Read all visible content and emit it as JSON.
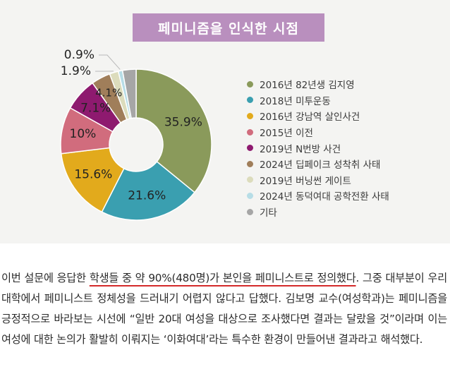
{
  "chart_data": {
    "type": "pie",
    "style": "donut",
    "title": "페미니즘을 인식한 시점",
    "legend_position": "right",
    "slices": [
      {
        "label": "2016년 82년생 김지영",
        "value": 35.9,
        "display": "35.9%",
        "color": "#8a9a5b"
      },
      {
        "label": "2018년 미투운동",
        "value": 21.6,
        "display": "21.6%",
        "color": "#3a9fb0"
      },
      {
        "label": "2016년 강남역 살인사건",
        "value": 15.6,
        "display": "15.6%",
        "color": "#e2aa1c"
      },
      {
        "label": "2015년 이전",
        "value": 10,
        "display": "10%",
        "color": "#d16c7d"
      },
      {
        "label": "2019년 N번방 사건",
        "value": 7.1,
        "display": "7.1%",
        "color": "#8e1a6f"
      },
      {
        "label": "2024년 딥페이크 성착취 사태",
        "value": 4.1,
        "display": "4.1%",
        "color": "#a07e5a"
      },
      {
        "label": "2019년 버닝썬 게이트",
        "value": 1.9,
        "display": "1.9%",
        "color": "#dcdcbc"
      },
      {
        "label": "2024년 동덕여대 공학전환 사태",
        "value": 0.9,
        "display": "0.9%",
        "color": "#b7dde6"
      },
      {
        "label": "기타",
        "value": 2.9,
        "display": "",
        "color": "#a6a6a6"
      }
    ]
  },
  "article": {
    "intro": "이번 설문에 응답한 ",
    "highlight": "학생들 중 약 90%(480명)가 본인을 페미니스트로 정의했다",
    "rest": ". 그중 대부분이 우리대학에서 페미니스트 정체성을 드러내기 어렵지 않다고 답했다. 김보명 교수(여성학과)는 페미니즘을 긍정적으로 바라보는 시선에 “일반 20대 여성을 대상으로 조사했다면 결과는 달랐을 것”이라며 이는 여성에 대한 논의가 활발히 이뤄지는 ‘이화여대’라는 특수한 환경이 만들어낸 결과라고 해석했다."
  }
}
